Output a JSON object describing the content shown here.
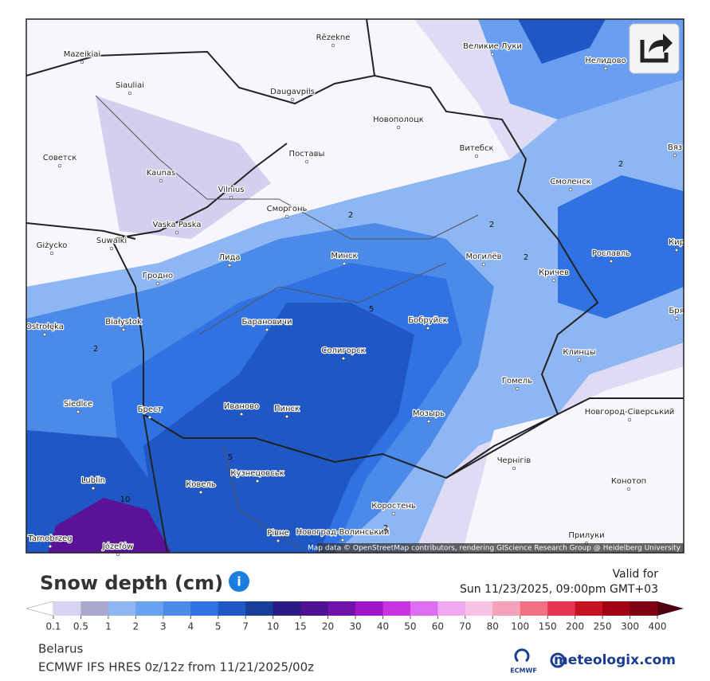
{
  "map": {
    "places": [
      "Mazeikiai",
      "Rēzekne",
      "Великие Луки",
      "Нелидово",
      "Siauliai",
      "Daugavpils",
      "Новополоцк",
      "Витебск",
      "Вяз",
      "Советск",
      "Kaunas",
      "Поставы",
      "Смоленск",
      "Vilnius",
      "Сморгонь",
      "Vaska Paska",
      "Suwalki",
      "Giżycko",
      "Лида",
      "Минск",
      "Могилёв",
      "Рославль",
      "Кир",
      "Гродно",
      "Кричев",
      "Бря",
      "Białystok",
      "Барановичи",
      "Бобруйск",
      "Ostrołęka",
      "Солигорск",
      "Клинцы",
      "Гомель",
      "Siedlce",
      "Брест",
      "Иваново",
      "Пинск",
      "Мозырь",
      "Новгород-Сіверський",
      "Чернігів",
      "Кузнецовськ",
      "Lublin",
      "Ковель",
      "Конотоп",
      "Коростень",
      "Рівне",
      "Новоград-Волинський",
      "Прилуки",
      "Józefów",
      "Tarnobrzeg"
    ],
    "contour_labels": [
      "2",
      "2",
      "2",
      "5",
      "5",
      "2",
      "10",
      "2",
      "2"
    ],
    "attribution": "Map data © OpenStreetMap contributors, rendering GIScience Research Group @ Heidelberg University"
  },
  "legend": {
    "title": "Snow depth (cm)",
    "valid_label": "Valid for",
    "valid_time": "Sun 11/23/2025, 09:00pm GMT+03",
    "ticks": [
      "0.1",
      "0.5",
      "1",
      "2",
      "3",
      "4",
      "5",
      "7",
      "10",
      "15",
      "20",
      "30",
      "40",
      "50",
      "60",
      "70",
      "80",
      "100",
      "150",
      "200",
      "250",
      "300",
      "400"
    ],
    "colors": [
      "#d6d4f0",
      "#aaa8cc",
      "#8db6f2",
      "#6aa0f0",
      "#4c8aea",
      "#3072e2",
      "#1f57c4",
      "#173f9a",
      "#2c1a84",
      "#4c1292",
      "#7012aa",
      "#a214c8",
      "#c832e0",
      "#e06ef2",
      "#f0a8f2",
      "#f6c2e2",
      "#f6a2ba",
      "#f07282",
      "#e63452",
      "#c81222",
      "#a00012",
      "#800012"
    ],
    "low_color": "#ffffff",
    "high_color": "#50000e"
  },
  "footer": {
    "region": "Belarus",
    "model": "ECMWF IFS HRES 0z/12z from 11/21/2025/00z",
    "ecmwf": "ECMWF",
    "brand": "meteologix.com"
  }
}
